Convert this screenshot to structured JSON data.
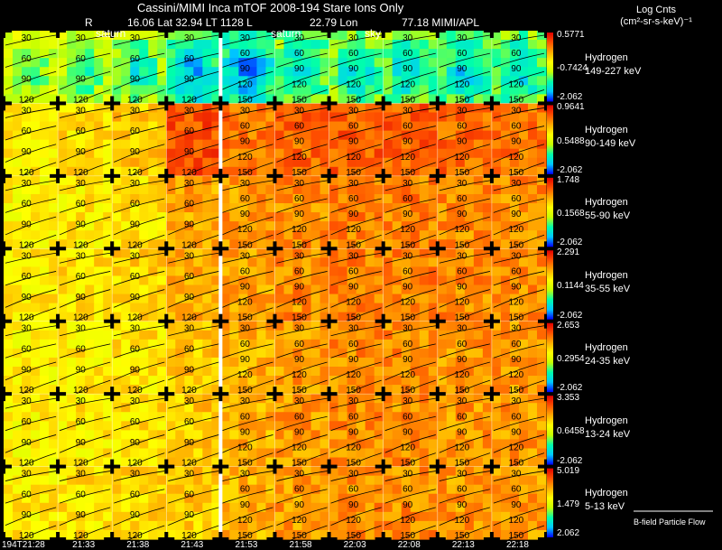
{
  "header": {
    "title": "Cassini/MIMI Inca mTOF  2008-194   Stare    Ions Only",
    "r_label": "R",
    "lat_text": "16.06 Lat 32.94 LT 1128 L",
    "lon_text": "22.79 Lon",
    "last_text": "77.18  MIMI/APL"
  },
  "legend": {
    "title_line1": "Log Cnts",
    "title_line2": "(cm²-sr-s-keV)⁻¹"
  },
  "overlay_labels": {
    "saturn_1": "saturn",
    "saturn_2": "saturn",
    "sky": "sky"
  },
  "footer": {
    "note": "B-field Particle Flow",
    "colors": {
      "bfield_arrow": "#ffffff",
      "divider": "#ffffff",
      "contour": "#000000"
    }
  },
  "chart_data": {
    "type": "heatmap",
    "title": "Cassini/MIMI Inca mTOF 2008-194 Stare Ions Only",
    "x_tick_labels": [
      "194T21:28",
      "21:33",
      "21:38",
      "21:43",
      "21:53",
      "21:58",
      "22:03",
      "22:08",
      "22:13",
      "22:18"
    ],
    "contour_labels": [
      "30",
      "60",
      "90",
      "120",
      "150"
    ],
    "colormap": [
      "#0000ff",
      "#00c8ff",
      "#00ffaa",
      "#c8ff00",
      "#ffff00",
      "#ffaa00",
      "#ff5000",
      "#e00000"
    ],
    "rows": [
      {
        "species": "Hydrogen",
        "energy": "149-227 keV",
        "cbar_max": "0.5771",
        "cbar_mid": "-0.7424",
        "cbar_min": "-2.062",
        "level": [
          0.52,
          0.5,
          0.46,
          0.34,
          0.32,
          0.4,
          0.42,
          0.4,
          0.4,
          0.4
        ]
      },
      {
        "species": "Hydrogen",
        "energy": "90-149 keV",
        "cbar_max": "0.9641",
        "cbar_mid": "0.5488",
        "cbar_min": "-2.062",
        "level": [
          0.6,
          0.62,
          0.66,
          0.86,
          0.8,
          0.82,
          0.84,
          0.84,
          0.82,
          0.8
        ]
      },
      {
        "species": "Hydrogen",
        "energy": "55-90 keV",
        "cbar_max": "1.748",
        "cbar_mid": "0.1568",
        "cbar_min": "-2.062",
        "level": [
          0.58,
          0.6,
          0.62,
          0.72,
          0.74,
          0.76,
          0.78,
          0.78,
          0.76,
          0.76
        ]
      },
      {
        "species": "Hydrogen",
        "energy": "35-55 keV",
        "cbar_max": "2.291",
        "cbar_mid": "0.1144",
        "cbar_min": "-2.062",
        "level": [
          0.6,
          0.62,
          0.64,
          0.7,
          0.72,
          0.76,
          0.78,
          0.78,
          0.76,
          0.76
        ]
      },
      {
        "species": "Hydrogen",
        "energy": "24-35 keV",
        "cbar_max": "2.653",
        "cbar_mid": "0.2954",
        "cbar_min": "-2.062",
        "level": [
          0.58,
          0.6,
          0.62,
          0.66,
          0.7,
          0.74,
          0.76,
          0.76,
          0.74,
          0.74
        ]
      },
      {
        "species": "Hydrogen",
        "energy": "13-24 keV",
        "cbar_max": "3.353",
        "cbar_mid": "0.6458",
        "cbar_min": "-2.062",
        "level": [
          0.58,
          0.6,
          0.62,
          0.66,
          0.7,
          0.74,
          0.76,
          0.76,
          0.74,
          0.74
        ]
      },
      {
        "species": "Hydrogen",
        "energy": "5-13 keV",
        "cbar_max": "5.019",
        "cbar_mid": "1.479",
        "cbar_min": "2.062",
        "level": [
          0.6,
          0.62,
          0.64,
          0.66,
          0.7,
          0.74,
          0.76,
          0.76,
          0.74,
          0.74
        ]
      }
    ]
  }
}
